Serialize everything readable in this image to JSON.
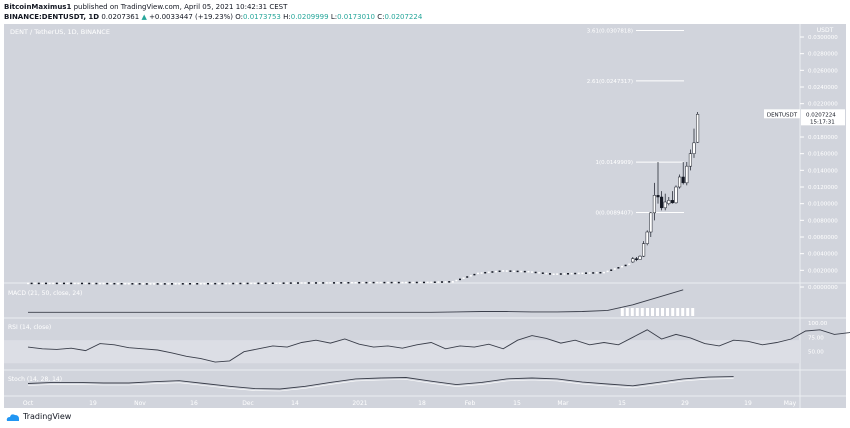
{
  "header": {
    "publisher": "BitcoinMaximus1",
    "published": "published on TradingView.com, April 05, 2021 10:42:31 CEST",
    "symbol": "BINANCE:DENTUSDT, 1D",
    "last": "0.0207361",
    "change": "+0.0033447 (+19.23%)",
    "o_label": "O:",
    "o": "0.0173753",
    "h_label": "H:",
    "h": "0.0209999",
    "l_label": "L:",
    "l": "0.0173010",
    "c_label": "C:",
    "c": "0.0207224"
  },
  "footer": {
    "brand": "TradingView"
  },
  "colors": {
    "background": "#d1d4dc",
    "text": "#ffffff",
    "candle_up": "#ffffff",
    "candle_down": "#131722",
    "line": "#3a3e4a",
    "up_arrow": "#26a69a"
  },
  "chart_data": {
    "type": "candlestick",
    "title": "DENT / TetherUS, 1D, BINANCE",
    "ylabel": "USDT",
    "ylim": [
      0,
      0.03
    ],
    "yticks": [
      "0.0300000",
      "0.0280000",
      "0.0260000",
      "0.0240000",
      "0.0220000",
      "0.0180000",
      "0.0160000",
      "0.0140000",
      "0.0120000",
      "0.0100000",
      "0.0080000",
      "0.0060000",
      "0.0040000",
      "0.0020000",
      "0.0000000"
    ],
    "xticks": [
      "Oct",
      "19",
      "Nov",
      "16",
      "Dec",
      "14",
      "2021",
      "18",
      "Feb",
      "15",
      "Mar",
      "15",
      "29",
      "19",
      "May"
    ],
    "price_label": {
      "symbol": "DENTUSDT",
      "value": "0.0207224",
      "countdown": "15:17:31"
    },
    "fib_levels": [
      {
        "label": "3.61(0.0307818)",
        "value": 0.0307818
      },
      {
        "label": "2.61(0.0247317)",
        "value": 0.0247317
      },
      {
        "label": "1(0.0149909)",
        "value": 0.0149909
      },
      {
        "label": "0(0.0089407)",
        "value": 0.0089407
      }
    ],
    "early_closes": {
      "start": "2020-10-01",
      "step_days": 7,
      "values": [
        0.0004,
        0.0004,
        0.00038,
        0.00036,
        0.00034,
        0.00035,
        0.00036,
        0.00038,
        0.0004,
        0.00042,
        0.00045,
        0.00046,
        0.00048,
        0.0005,
        0.0005,
        0.00052,
        0.0006,
        0.0016,
        0.0019,
        0.0018,
        0.0015,
        0.0016,
        0.0017,
        0.0027
      ]
    },
    "candles": [
      [
        "2021-03-18",
        0.003,
        0.0036,
        0.0029,
        0.0034
      ],
      [
        "2021-03-19",
        0.0034,
        0.0036,
        0.0031,
        0.0033
      ],
      [
        "2021-03-20",
        0.0033,
        0.0038,
        0.0033,
        0.0037
      ],
      [
        "2021-03-21",
        0.0037,
        0.0055,
        0.0036,
        0.0052
      ],
      [
        "2021-03-22",
        0.0052,
        0.0068,
        0.005,
        0.0066
      ],
      [
        "2021-03-23",
        0.0066,
        0.009,
        0.006,
        0.0089
      ],
      [
        "2021-03-24",
        0.0089,
        0.0125,
        0.008,
        0.011
      ],
      [
        "2021-03-25",
        0.011,
        0.015,
        0.01,
        0.0108
      ],
      [
        "2021-03-26",
        0.0108,
        0.0115,
        0.0092,
        0.0095
      ],
      [
        "2021-03-27",
        0.0095,
        0.0112,
        0.0092,
        0.0102
      ],
      [
        "2021-03-28",
        0.01,
        0.0108,
        0.0098,
        0.0104
      ],
      [
        "2021-03-29",
        0.0104,
        0.0115,
        0.01,
        0.0101
      ],
      [
        "2021-03-30",
        0.0101,
        0.0122,
        0.01,
        0.012
      ],
      [
        "2021-03-31",
        0.012,
        0.0135,
        0.0118,
        0.0132
      ],
      [
        "2021-04-01",
        0.0132,
        0.015,
        0.0123,
        0.0125
      ],
      [
        "2021-04-02",
        0.0125,
        0.015,
        0.0122,
        0.0145
      ],
      [
        "2021-04-03",
        0.0145,
        0.0165,
        0.014,
        0.016
      ],
      [
        "2021-04-04",
        0.016,
        0.019,
        0.0155,
        0.0173
      ],
      [
        "2021-04-05",
        0.0173753,
        0.0209999,
        0.017301,
        0.0207224
      ]
    ],
    "indicators": [
      {
        "name": "MACD (21, 50, close, 24)",
        "step_days": 7,
        "values": [
          0,
          0,
          0,
          0,
          0,
          0,
          0,
          0,
          0,
          0,
          0,
          0,
          0,
          0,
          0,
          0,
          0,
          0.0001,
          0.0002,
          0.0002,
          0.0001,
          0.0001,
          0.0002,
          0.0005,
          0.002,
          0.004,
          0.006
        ]
      },
      {
        "name": "RSI (14, close)",
        "ylim": [
          0,
          100
        ],
        "yticks": [
          "100.00",
          "75.00",
          "50.00"
        ],
        "band": [
          30,
          70
        ],
        "step_days": 4,
        "values": [
          58,
          55,
          54,
          56,
          52,
          64,
          62,
          57,
          55,
          53,
          48,
          42,
          38,
          32,
          34,
          50,
          55,
          60,
          58,
          66,
          70,
          65,
          72,
          63,
          58,
          60,
          56,
          62,
          66,
          55,
          60,
          58,
          63,
          55,
          70,
          78,
          73,
          65,
          70,
          62,
          66,
          62,
          75,
          88,
          72,
          80,
          74,
          64,
          60,
          70,
          68,
          62,
          66,
          72,
          86,
          88,
          80,
          83,
          88,
          92
        ]
      },
      {
        "name": "Stoch (14, 28, 14)",
        "step_days": 7,
        "values": [
          50,
          55,
          55,
          52,
          52,
          58,
          62,
          50,
          38,
          28,
          26,
          38,
          55,
          70,
          74,
          76,
          60,
          45,
          55,
          70,
          74,
          70,
          56,
          48,
          40,
          55,
          70,
          78,
          80
        ]
      }
    ]
  }
}
